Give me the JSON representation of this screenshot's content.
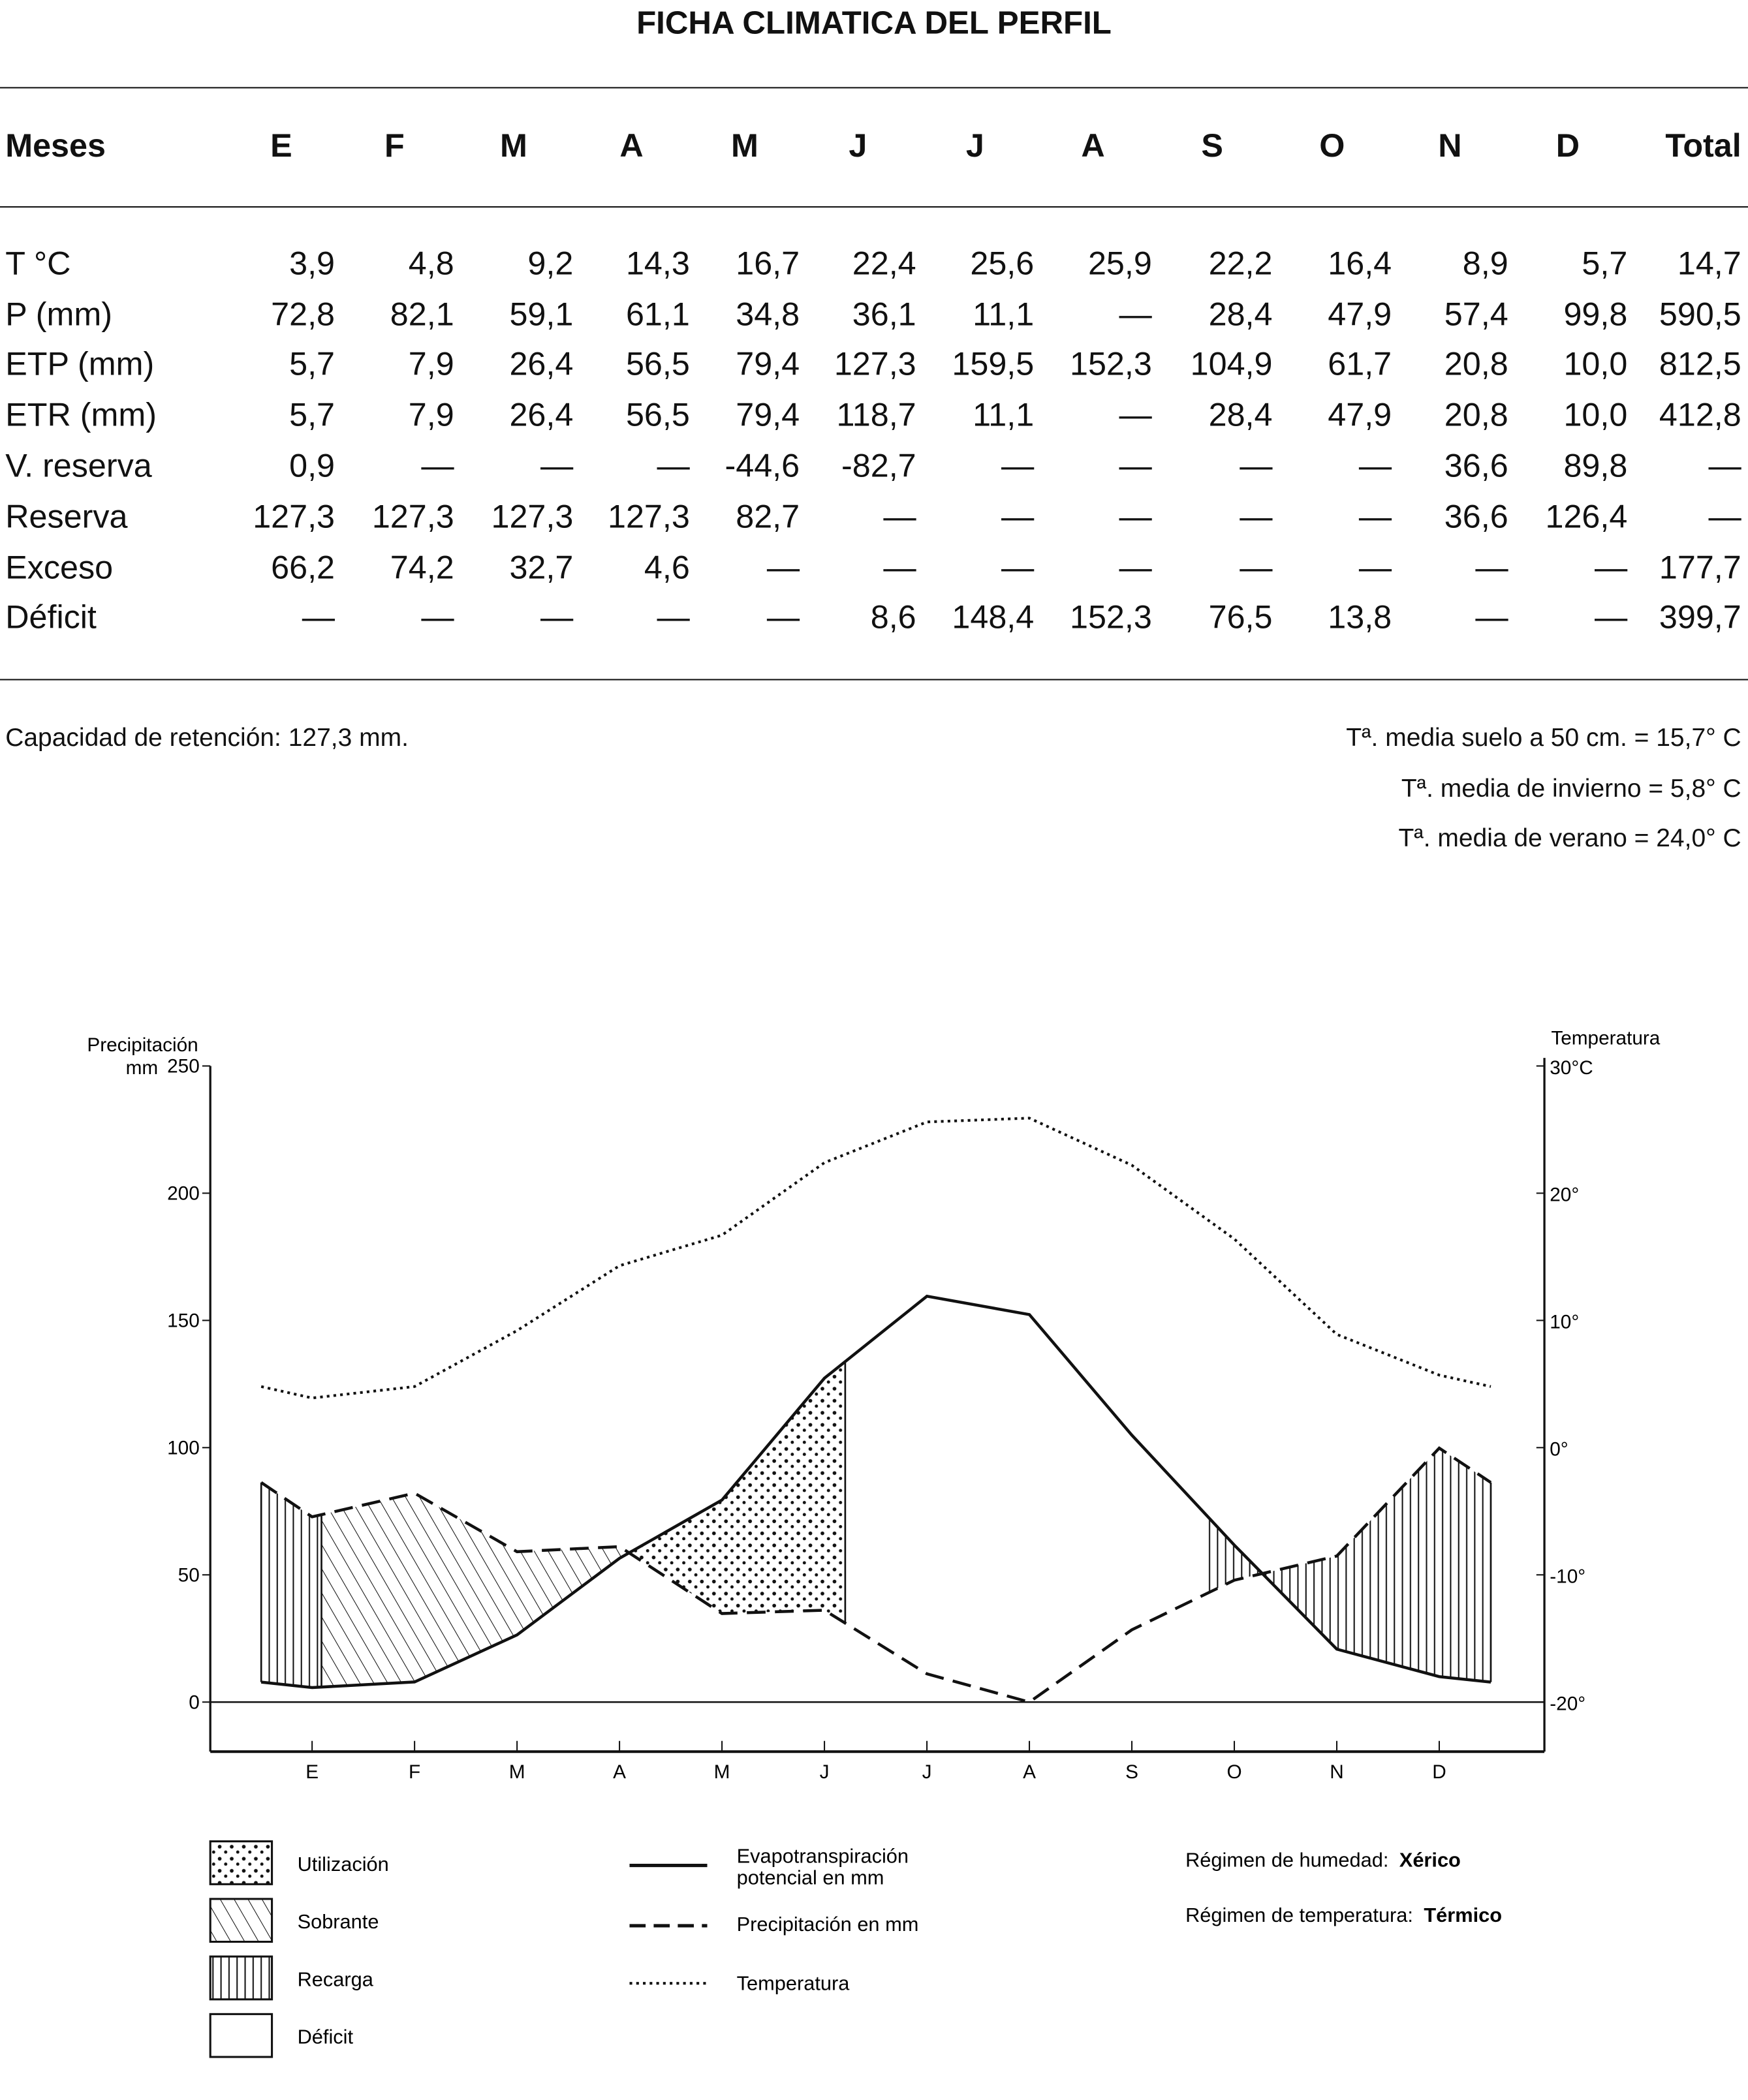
{
  "title": "FICHA CLIMATICA DEL PERFIL",
  "table": {
    "header": [
      "Meses",
      "E",
      "F",
      "M",
      "A",
      "M",
      "J",
      "J",
      "A",
      "S",
      "O",
      "N",
      "D",
      "Total"
    ],
    "rows": [
      [
        "T °C",
        "3,9",
        "4,8",
        "9,2",
        "14,3",
        "16,7",
        "22,4",
        "25,6",
        "25,9",
        "22,2",
        "16,4",
        "8,9",
        "5,7",
        "14,7"
      ],
      [
        "P (mm)",
        "72,8",
        "82,1",
        "59,1",
        "61,1",
        "34,8",
        "36,1",
        "11,1",
        "—",
        "28,4",
        "47,9",
        "57,4",
        "99,8",
        "590,5"
      ],
      [
        "ETP (mm)",
        "5,7",
        "7,9",
        "26,4",
        "56,5",
        "79,4",
        "127,3",
        "159,5",
        "152,3",
        "104,9",
        "61,7",
        "20,8",
        "10,0",
        "812,5"
      ],
      [
        "ETR (mm)",
        "5,7",
        "7,9",
        "26,4",
        "56,5",
        "79,4",
        "118,7",
        "11,1",
        "—",
        "28,4",
        "47,9",
        "20,8",
        "10,0",
        "412,8"
      ],
      [
        "V. reserva",
        "0,9",
        "—",
        "—",
        "—",
        "-44,6",
        "-82,7",
        "—",
        "—",
        "—",
        "—",
        "36,6",
        "89,8",
        "—"
      ],
      [
        "Reserva",
        "127,3",
        "127,3",
        "127,3",
        "127,3",
        "82,7",
        "—",
        "—",
        "—",
        "—",
        "—",
        "36,6",
        "126,4",
        "—"
      ],
      [
        "Exceso",
        "66,2",
        "74,2",
        "32,7",
        "4,6",
        "—",
        "—",
        "—",
        "—",
        "—",
        "—",
        "—",
        "—",
        "177,7"
      ],
      [
        "Déficit",
        "—",
        "—",
        "—",
        "—",
        "—",
        "8,6",
        "148,4",
        "152,3",
        "76,5",
        "13,8",
        "—",
        "—",
        "399,7"
      ]
    ]
  },
  "notes": {
    "capacidad": "Capacidad de retención: 127,3 mm.",
    "suelo": "Tª. media suelo a 50 cm. = 15,7° C",
    "invierno": "Tª. media de invierno = 5,8° C",
    "verano": "Tª. media de verano = 24,0° C"
  },
  "chart_data": {
    "type": "line",
    "categories": [
      "E",
      "F",
      "M",
      "A",
      "M",
      "J",
      "J",
      "A",
      "S",
      "O",
      "N",
      "D"
    ],
    "left_axis": {
      "label_line1": "Precipitación",
      "label_line2": "mm",
      "ticks": [
        "250",
        "200",
        "150",
        "100",
        "50",
        "0"
      ],
      "ylim": [
        -20,
        250
      ]
    },
    "right_axis": {
      "label": "Temperatura",
      "ticks": [
        "30°C",
        "20°",
        "10°",
        "0°",
        "-10°",
        "-20°"
      ],
      "ylim": [
        -20,
        30
      ]
    },
    "series": [
      {
        "name": "Evapotranspiración potencial en mm",
        "style": "solid",
        "values": [
          5.7,
          7.9,
          26.4,
          56.5,
          79.4,
          127.3,
          159.5,
          152.3,
          104.9,
          61.7,
          20.8,
          10.0
        ]
      },
      {
        "name": "Precipitación en mm",
        "style": "dashed",
        "values": [
          72.8,
          82.1,
          59.1,
          61.1,
          34.8,
          36.1,
          11.1,
          0,
          28.4,
          47.9,
          57.4,
          99.8
        ]
      },
      {
        "name": "Temperatura",
        "style": "dotted",
        "axis": "right",
        "values": [
          3.9,
          4.8,
          9.2,
          14.3,
          16.7,
          22.4,
          25.6,
          25.9,
          22.2,
          16.4,
          8.9,
          5.7
        ]
      }
    ],
    "legend": {
      "areas": [
        "Utilización",
        "Sobrante",
        "Recarga",
        "Déficit"
      ],
      "lines": [
        "Evapotranspiración",
        "potencial en mm",
        "Precipitación en mm",
        "Temperatura"
      ]
    },
    "regimen": {
      "humedad_label": "Régimen de humedad:",
      "humedad": "Xérico",
      "temp_label": "Régimen de temperatura:",
      "temp": "Térmico"
    }
  }
}
